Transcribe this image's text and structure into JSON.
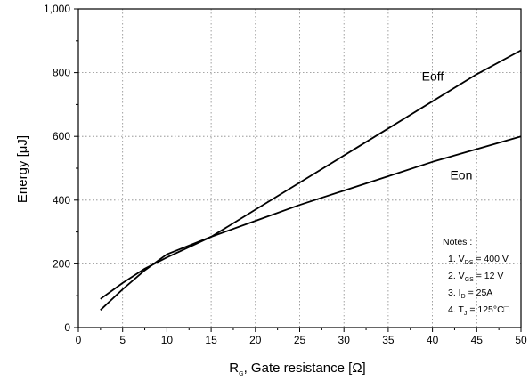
{
  "chart_data": {
    "type": "line",
    "xlabel": {
      "main": "R",
      "sub": "G",
      "rest": ", Gate resistance [Ω]"
    },
    "ylabel": "Energy  [μJ]",
    "xlim": [
      0,
      50
    ],
    "ylim": [
      0,
      1000
    ],
    "xticks": [
      0,
      5,
      10,
      15,
      20,
      25,
      30,
      35,
      40,
      45,
      50
    ],
    "xtick_labels": [
      "0",
      "5",
      "10",
      "15",
      "20",
      "25",
      "30",
      "35",
      "40",
      "45",
      "50"
    ],
    "yticks": [
      0,
      200,
      400,
      600,
      800,
      1000
    ],
    "ytick_labels": [
      "0",
      "200",
      "400",
      "600",
      "800",
      "1,000"
    ],
    "grid": true,
    "series": [
      {
        "name": "Eoff",
        "x": [
          2.5,
          5,
          7.5,
          10,
          15,
          20,
          25,
          30,
          35,
          40,
          45,
          50
        ],
        "values": [
          55,
          120,
          180,
          230,
          285,
          370,
          455,
          540,
          625,
          710,
          795,
          870
        ]
      },
      {
        "name": "Eon",
        "x": [
          2.5,
          5,
          7.5,
          10,
          15,
          20,
          25,
          30,
          35,
          40,
          45,
          50
        ],
        "values": [
          90,
          140,
          185,
          220,
          285,
          335,
          385,
          430,
          475,
          520,
          560,
          600
        ]
      }
    ],
    "notes": {
      "title": "Notes :",
      "items": [
        {
          "prefix": "1. V",
          "sub": "DS",
          "suffix": " = 400 V"
        },
        {
          "prefix": "2. V",
          "sub": "GS",
          "suffix": " = 12 V"
        },
        {
          "prefix": "3. I",
          "sub": "D",
          "suffix": " = 25A"
        },
        {
          "prefix": "4. T",
          "sub": "J",
          "suffix": " = 125°C□"
        }
      ]
    }
  }
}
